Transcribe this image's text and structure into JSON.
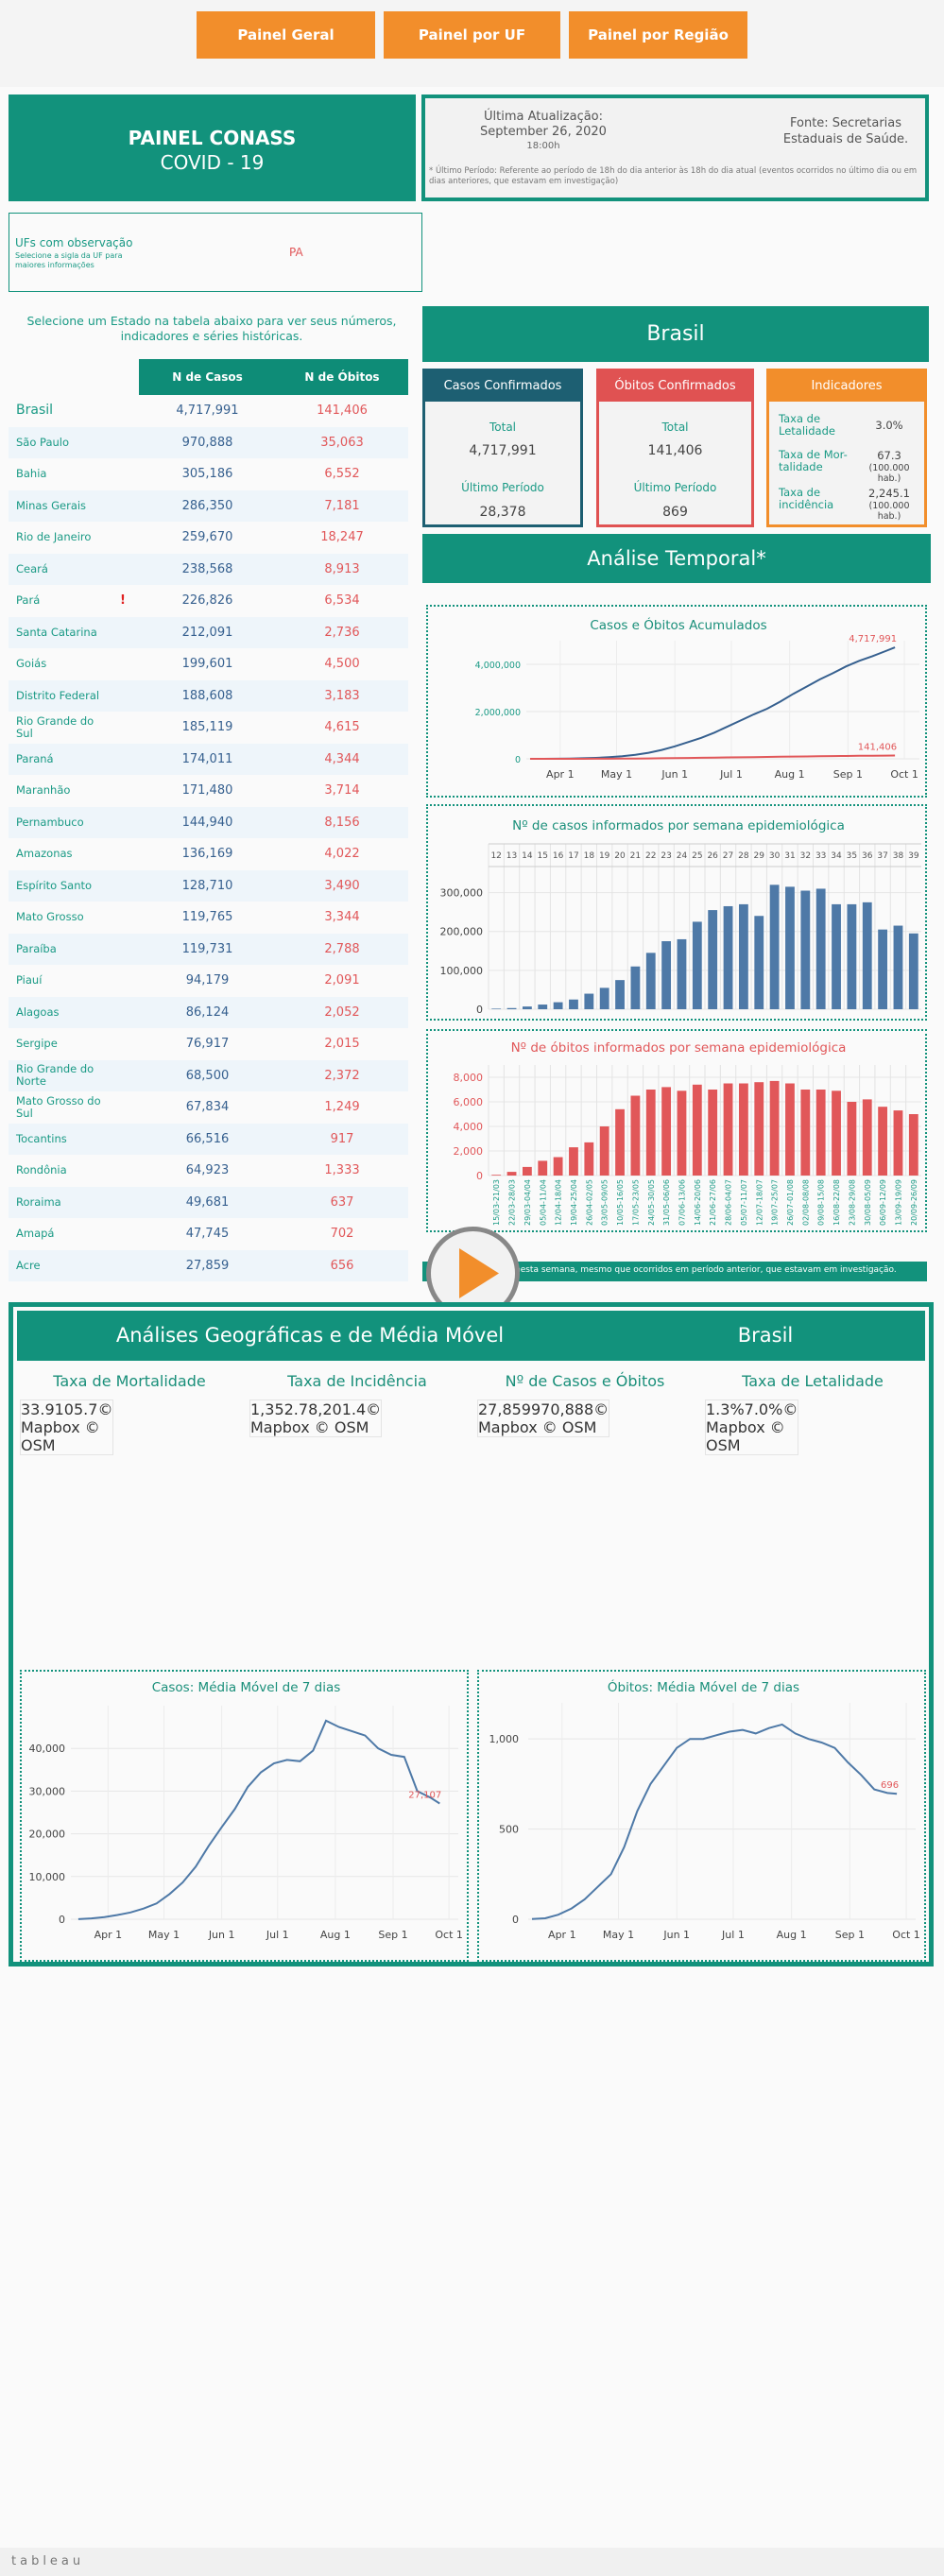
{
  "nav": [
    "Painel Geral",
    "Painel por UF",
    "Painel por Região"
  ],
  "header": {
    "title": "PAINEL CONASS",
    "subtitle": "COVID - 19",
    "update_label": "Última Atualização:",
    "update_date": "September 26, 2020",
    "update_time": "18:00h",
    "source": "Fonte: Secretarias Estaduais de Saúde.",
    "footnote": "* Último Período: Referente ao período de 18h do dia anterior às 18h do dia atual (eventos ocorridos no último dia ou em dias anteriores, que estavam em investigação)"
  },
  "ufs": {
    "title": "UFs com observação",
    "hint": "Selecione a sigla da UF para maiores informações",
    "list": [
      "PA"
    ]
  },
  "instruction": "Selecione um Estado na tabela abaixo para ver seus números, indicadores e séries históricas.",
  "table": {
    "columns": [
      "N de Casos",
      "N de Óbitos"
    ],
    "rows": [
      [
        "Brasil",
        "4,717,991",
        "141,406"
      ],
      [
        "São Paulo",
        "970,888",
        "35,063"
      ],
      [
        "Bahia",
        "305,186",
        "6,552"
      ],
      [
        "Minas Gerais",
        "286,350",
        "7,181"
      ],
      [
        "Rio de Janeiro",
        "259,670",
        "18,247"
      ],
      [
        "Ceará",
        "238,568",
        "8,913"
      ],
      [
        "Pará",
        "226,826",
        "6,534",
        "!"
      ],
      [
        "Santa Catarina",
        "212,091",
        "2,736"
      ],
      [
        "Goiás",
        "199,601",
        "4,500"
      ],
      [
        "Distrito Federal",
        "188,608",
        "3,183"
      ],
      [
        "Rio Grande do Sul",
        "185,119",
        "4,615"
      ],
      [
        "Paraná",
        "174,011",
        "4,344"
      ],
      [
        "Maranhão",
        "171,480",
        "3,714"
      ],
      [
        "Pernambuco",
        "144,940",
        "8,156"
      ],
      [
        "Amazonas",
        "136,169",
        "4,022"
      ],
      [
        "Espírito Santo",
        "128,710",
        "3,490"
      ],
      [
        "Mato Grosso",
        "119,765",
        "3,344"
      ],
      [
        "Paraíba",
        "119,731",
        "2,788"
      ],
      [
        "Piauí",
        "94,179",
        "2,091"
      ],
      [
        "Alagoas",
        "86,124",
        "2,052"
      ],
      [
        "Sergipe",
        "76,917",
        "2,015"
      ],
      [
        "Rio Grande do Norte",
        "68,500",
        "2,372"
      ],
      [
        "Mato Grosso do Sul",
        "67,834",
        "1,249"
      ],
      [
        "Tocantins",
        "66,516",
        "917"
      ],
      [
        "Rondônia",
        "64,923",
        "1,333"
      ],
      [
        "Roraima",
        "49,681",
        "637"
      ],
      [
        "Amapá",
        "47,745",
        "702"
      ],
      [
        "Acre",
        "27,859",
        "656"
      ]
    ]
  },
  "brasil": {
    "title": "Brasil",
    "cards": [
      {
        "title": "Casos Confirmados",
        "total_label": "Total",
        "total": "4,717,991",
        "period_label": "Último Período",
        "period": "28,378"
      },
      {
        "title": "Óbitos Confirmados",
        "total_label": "Total",
        "total": "141,406",
        "period_label": "Último Período",
        "period": "869"
      }
    ],
    "indicators": {
      "title": "Indicadores",
      "items": [
        {
          "label": "Taxa de Letalidade",
          "value": "3.0%"
        },
        {
          "label": "Taxa de Mor-talidade",
          "value": "67.3",
          "unit": "(100.000 hab.)"
        },
        {
          "label": "Taxa de incidência",
          "value": "2,245.1",
          "unit": "(100.000 hab.)"
        }
      ]
    }
  },
  "temporal": {
    "title": "Análise Temporal*",
    "note": "nesta semana, mesmo que ocorridos em período anterior, que estavam em investigação."
  },
  "geo": {
    "title": "Análises Geográficas e de Média Móvel",
    "region": "Brasil",
    "maps": [
      {
        "title": "Taxa de Mortalidade",
        "credit": "© Mapbox © OSM",
        "legend": [
          33.9,
          105.7
        ],
        "colors": [
          "#f4f1d6",
          "#c9bf52"
        ]
      },
      {
        "title": "Taxa de Incidência",
        "credit": "© Mapbox © OSM",
        "legend": [
          {
            "value": 1352.7,
            "label": "1,352.7"
          },
          {
            "value": 8201.4,
            "label": "8,201.4"
          }
        ],
        "colors": [
          "#dff0ee",
          "#3b6c8b"
        ]
      },
      {
        "title": "Nº de Casos e Óbitos",
        "credit": "© Mapbox © OSM",
        "legend": [
          {
            "value": 27859,
            "label": "27,859"
          },
          {
            "value": 970888,
            "label": "970,888"
          }
        ],
        "colors": [
          "#ffffff",
          "#1c1ce0"
        ]
      },
      {
        "title": "Taxa de Letalidade",
        "credit": "© Mapbox © OSM",
        "legend": [
          {
            "value": 1.3,
            "label": "1.3%"
          },
          {
            "value": 7.0,
            "label": "7.0%"
          }
        ],
        "colors": [
          "#f7ebfb",
          "#b950e2"
        ]
      }
    ]
  },
  "chart_data": [
    {
      "type": "line",
      "title": "Casos e Óbitos Acumulados",
      "title_color": "#1a8f7a",
      "x": [
        "03-16",
        "03-23",
        "03-30",
        "04-06",
        "04-13",
        "04-20",
        "04-27",
        "05-04",
        "05-11",
        "05-18",
        "05-25",
        "06-01",
        "06-08",
        "06-15",
        "06-22",
        "06-29",
        "07-06",
        "07-13",
        "07-20",
        "07-27",
        "08-03",
        "08-10",
        "08-17",
        "08-24",
        "08-31",
        "09-07",
        "09-14",
        "09-21",
        "09-26"
      ],
      "xlim": [
        "03-14",
        "10-09"
      ],
      "xticks": [
        {
          "value": "04-01",
          "label": "Apr 1"
        },
        {
          "value": "05-01",
          "label": "May 1"
        },
        {
          "value": "06-01",
          "label": "Jun 1"
        },
        {
          "value": "07-01",
          "label": "Jul 1"
        },
        {
          "value": "08-01",
          "label": "Aug 1"
        },
        {
          "value": "09-01",
          "label": "Sep 1"
        },
        {
          "value": "10-01",
          "label": "Oct 1"
        }
      ],
      "ylim": [
        0,
        5000000
      ],
      "yticks": [
        0,
        {
          "value": 2000000,
          "label": "2,000,000"
        },
        {
          "value": 4000000,
          "label": "4,000,000"
        }
      ],
      "grid": true,
      "series": [
        {
          "color": "#36608f",
          "values": [
            234,
            1891,
            4579,
            12056,
            23430,
            40581,
            66501,
            107780,
            168331,
            254220,
            374898,
            526447,
            707412,
            888271,
            1106470,
            1368195,
            1623284,
            1884967,
            2118646,
            2419091,
            2750318,
            3057470,
            3359570,
            3622861,
            3910901,
            4147794,
            4345610,
            4558040,
            4717991
          ],
          "value_labels": [
            null,
            null,
            null,
            null,
            null,
            null,
            null,
            null,
            null,
            null,
            null,
            null,
            null,
            null,
            null,
            null,
            null,
            null,
            null,
            null,
            null,
            null,
            null,
            null,
            null,
            null,
            null,
            null,
            "4,717,991"
          ]
        },
        {
          "color": "#e15759",
          "values": [
            0,
            34,
            159,
            553,
            1328,
            2575,
            4543,
            7321,
            11519,
            16792,
            23473,
            29937,
            37134,
            43959,
            51271,
            58314,
            65487,
            72100,
            79488,
            87004,
            94665,
            101752,
            108536,
            115309,
            121381,
            126650,
            132006,
            137272,
            141406
          ],
          "value_labels": [
            null,
            null,
            null,
            null,
            null,
            null,
            null,
            null,
            null,
            null,
            null,
            null,
            null,
            null,
            null,
            null,
            null,
            null,
            null,
            null,
            null,
            null,
            null,
            null,
            null,
            null,
            null,
            null,
            "141,406"
          ]
        }
      ]
    },
    {
      "type": "bar",
      "title": "Nº de casos informados por semana epidemiológica",
      "title_color": "#1a8f7a",
      "categories": [
        "12",
        "13",
        "14",
        "15",
        "16",
        "17",
        "18",
        "19",
        "20",
        "21",
        "22",
        "23",
        "24",
        "25",
        "26",
        "27",
        "28",
        "29",
        "30",
        "31",
        "32",
        "33",
        "34",
        "35",
        "36",
        "37",
        "38",
        "39"
      ],
      "values": [
        1500,
        3000,
        7000,
        12000,
        18000,
        25000,
        40000,
        55000,
        75000,
        110000,
        145000,
        175000,
        180000,
        225000,
        255000,
        265000,
        270000,
        240000,
        320000,
        315000,
        305000,
        310000,
        270000,
        270000,
        275000,
        205000,
        215000,
        195000
      ],
      "color": "#4e79a7",
      "ylim": [
        0,
        350000
      ],
      "yticks": [
        0,
        {
          "value": 100000,
          "label": "100,000"
        },
        {
          "value": 200000,
          "label": "200,000"
        },
        {
          "value": 300000,
          "label": "300,000"
        }
      ],
      "grid": true
    },
    {
      "type": "bar",
      "title": "Nº de óbitos informados por semana epidemiológica",
      "title_color": "#e15759",
      "categories": [
        "15/03-21/03",
        "22/03-28/03",
        "29/03-04/04",
        "05/04-11/04",
        "12/04-18/04",
        "19/04-25/04",
        "26/04-02/05",
        "03/05-09/05",
        "10/05-16/05",
        "17/05-23/05",
        "24/05-30/05",
        "31/05-06/06",
        "07/06-13/06",
        "14/06-20/06",
        "21/06-27/06",
        "28/06-04/07",
        "05/07-11/07",
        "12/07-18/07",
        "19/07-25/07",
        "26/07-01/08",
        "02/08-08/08",
        "09/08-15/08",
        "16/08-22/08",
        "23/08-29/08",
        "30/08-05/09",
        "06/09-12/09",
        "13/09-19/09",
        "20/09-26/09"
      ],
      "values": [
        60,
        300,
        700,
        1200,
        1500,
        2300,
        2700,
        4000,
        5400,
        6500,
        7000,
        7200,
        6900,
        7400,
        7000,
        7500,
        7500,
        7600,
        7700,
        7500,
        7000,
        7000,
        6900,
        6000,
        6200,
        5600,
        5300,
        5000
      ],
      "color": "#e15759",
      "ylim": [
        0,
        9000
      ],
      "yticks": [
        0,
        {
          "value": 2000,
          "label": "2,000"
        },
        {
          "value": 4000,
          "label": "4,000"
        },
        {
          "value": 6000,
          "label": "6,000"
        },
        {
          "value": 8000,
          "label": "8,000"
        }
      ],
      "grid": true
    },
    {
      "type": "line",
      "title": "Casos: Média Móvel de 7 dias",
      "title_color": "#1a8f7a",
      "x": [
        "03-16",
        "03-23",
        "03-30",
        "04-06",
        "04-13",
        "04-20",
        "04-27",
        "05-04",
        "05-11",
        "05-18",
        "05-25",
        "06-01",
        "06-08",
        "06-15",
        "06-22",
        "06-29",
        "07-06",
        "07-13",
        "07-20",
        "07-27",
        "08-03",
        "08-10",
        "08-17",
        "08-24",
        "08-31",
        "09-07",
        "09-14",
        "09-21",
        "09-26"
      ],
      "xlim": [
        "03-12",
        "10-06"
      ],
      "xticks": [
        {
          "value": "04-01",
          "label": "Apr 1"
        },
        {
          "value": "05-01",
          "label": "May 1"
        },
        {
          "value": "06-01",
          "label": "Jun 1"
        },
        {
          "value": "07-01",
          "label": "Jul 1"
        },
        {
          "value": "08-01",
          "label": "Aug 1"
        },
        {
          "value": "09-01",
          "label": "Sep 1"
        },
        {
          "value": "10-01",
          "label": "Oct 1"
        }
      ],
      "ylim": [
        0,
        50000
      ],
      "yticks": [
        0,
        {
          "value": 10000,
          "label": "10,000"
        },
        {
          "value": 20000,
          "label": "20,000"
        },
        {
          "value": 30000,
          "label": "30,000"
        },
        {
          "value": 40000,
          "label": "40,000"
        }
      ],
      "grid": true,
      "series": [
        {
          "color": "#4e79a7",
          "values": [
            30,
            200,
            500,
            1000,
            1600,
            2500,
            3700,
            5900,
            8600,
            12300,
            17200,
            21600,
            25800,
            31000,
            34400,
            36500,
            37300,
            37000,
            39500,
            46500,
            45000,
            44000,
            43000,
            40000,
            38500,
            38000,
            30000,
            28500,
            27107
          ],
          "value_labels": [
            null,
            null,
            null,
            null,
            null,
            null,
            null,
            null,
            null,
            null,
            null,
            null,
            null,
            null,
            null,
            null,
            null,
            null,
            null,
            null,
            null,
            null,
            null,
            null,
            null,
            null,
            null,
            null,
            "27,107"
          ]
        }
      ]
    },
    {
      "type": "line",
      "title": "Óbitos: Média Móvel de 7 dias",
      "title_color": "#1a8f7a",
      "x": [
        "03-16",
        "03-23",
        "03-30",
        "04-06",
        "04-13",
        "04-20",
        "04-27",
        "05-04",
        "05-11",
        "05-18",
        "05-25",
        "06-01",
        "06-08",
        "06-15",
        "06-22",
        "06-29",
        "07-06",
        "07-13",
        "07-20",
        "07-27",
        "08-03",
        "08-10",
        "08-17",
        "08-24",
        "08-31",
        "09-07",
        "09-14",
        "09-21",
        "09-26"
      ],
      "xlim": [
        "03-14",
        "10-06"
      ],
      "xticks": [
        {
          "value": "04-01",
          "label": "Apr 1"
        },
        {
          "value": "05-01",
          "label": "May 1"
        },
        {
          "value": "06-01",
          "label": "Jun 1"
        },
        {
          "value": "07-01",
          "label": "Jul 1"
        },
        {
          "value": "08-01",
          "label": "Aug 1"
        },
        {
          "value": "09-01",
          "label": "Sep 1"
        },
        {
          "value": "10-01",
          "label": "Oct 1"
        }
      ],
      "ylim": [
        0,
        1200
      ],
      "yticks": [
        0,
        500,
        {
          "value": 1000,
          "label": "1,000"
        }
      ],
      "grid": true,
      "series": [
        {
          "color": "#4e79a7",
          "values": [
            1,
            5,
            25,
            60,
            110,
            180,
            250,
            400,
            600,
            750,
            850,
            950,
            1000,
            1000,
            1020,
            1040,
            1050,
            1030,
            1060,
            1080,
            1030,
            1000,
            980,
            950,
            870,
            800,
            720,
            700,
            696
          ],
          "value_labels": [
            null,
            null,
            null,
            null,
            null,
            null,
            null,
            null,
            null,
            null,
            null,
            null,
            null,
            null,
            null,
            null,
            null,
            null,
            null,
            null,
            null,
            null,
            null,
            null,
            null,
            null,
            null,
            null,
            "696"
          ]
        }
      ]
    }
  ],
  "footer": {
    "logo": "tableau"
  }
}
